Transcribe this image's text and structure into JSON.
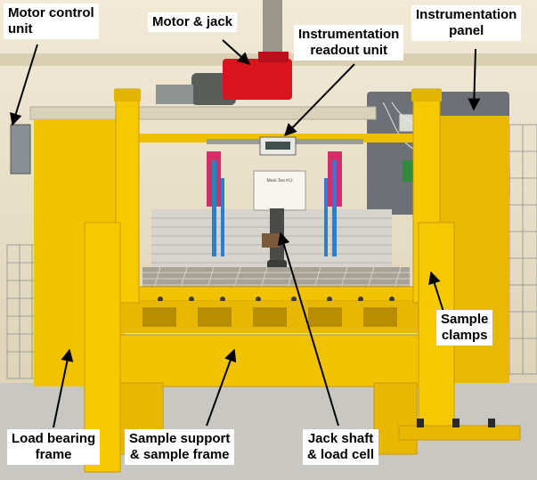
{
  "labels": {
    "motor_control": "Motor control\nunit",
    "motor_jack": "Motor & jack",
    "readout": "Instrumentation\nreadout unit",
    "panel": "Instrumentation\npanel",
    "clamps": "Sample\nclamps",
    "load_frame": "Load bearing\nframe",
    "support": "Sample support\n& sample frame",
    "jack_shaft": "Jack shaft\n& load cell"
  },
  "sign_text": "Mesh Test #12",
  "colors": {
    "frame_yellow": "#f2c200",
    "frame_shadow": "#c99a00",
    "wall": "#e8e0c8",
    "floor": "#c8c6c0",
    "motor_red": "#d8141c",
    "panel_gray": "#6e7078",
    "cylinder_blue": "#2a7fc8"
  }
}
